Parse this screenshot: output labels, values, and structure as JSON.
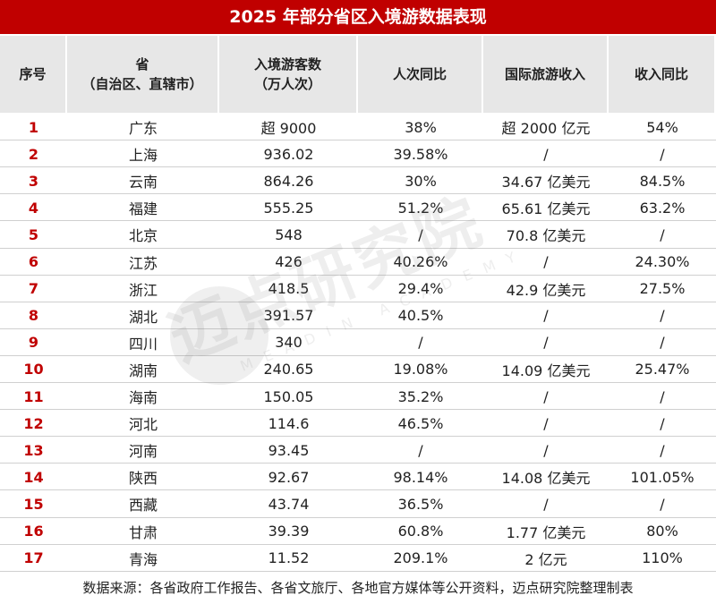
{
  "title": "2025 年部分省区入境游数据表现",
  "table": {
    "header": [
      [
        "序号"
      ],
      [
        "省",
        "（自治区、直辖市）"
      ],
      [
        "入境游客数",
        "（万人次）"
      ],
      [
        "人次同比"
      ],
      [
        "国际旅游收入"
      ],
      [
        "收入同比"
      ]
    ],
    "rows": [
      [
        "1",
        "广东",
        "超 9000",
        "38%",
        "超 2000 亿元",
        "54%"
      ],
      [
        "2",
        "上海",
        "936.02",
        "39.58%",
        "/",
        "/"
      ],
      [
        "3",
        "云南",
        "864.26",
        "30%",
        "34.67 亿美元",
        "84.5%"
      ],
      [
        "4",
        "福建",
        "555.25",
        "51.2%",
        "65.61 亿美元",
        "63.2%"
      ],
      [
        "5",
        "北京",
        "548",
        "/",
        "70.8 亿美元",
        "/"
      ],
      [
        "6",
        "江苏",
        "426",
        "40.26%",
        "/",
        "24.30%"
      ],
      [
        "7",
        "浙江",
        "418.5",
        "29.4%",
        "42.9 亿美元",
        "27.5%"
      ],
      [
        "8",
        "湖北",
        "391.57",
        "40.5%",
        "/",
        "/"
      ],
      [
        "9",
        "四川",
        "340",
        "/",
        "/",
        "/"
      ],
      [
        "10",
        "湖南",
        "240.65",
        "19.08%",
        "14.09 亿美元",
        "25.47%"
      ],
      [
        "11",
        "海南",
        "150.05",
        "35.2%",
        "/",
        "/"
      ],
      [
        "12",
        "河北",
        "114.6",
        "46.5%",
        "/",
        "/"
      ],
      [
        "13",
        "河南",
        "93.45",
        "/",
        "/",
        "/"
      ],
      [
        "14",
        "陕西",
        "92.67",
        "98.14%",
        "14.08 亿美元",
        "101.05%"
      ],
      [
        "15",
        "西藏",
        "43.74",
        "36.5%",
        "/",
        "/"
      ],
      [
        "16",
        "甘肃",
        "39.39",
        "60.8%",
        "1.77 亿美元",
        "80%"
      ],
      [
        "17",
        "青海",
        "11.52",
        "209.1%",
        "2 亿元",
        "110%"
      ]
    ]
  },
  "watermark": {
    "text": "迈点研究院",
    "subtext": "MEADIN ACADEMY"
  },
  "footer": "数据来源：各省政府工作报告、各省文旅厅、各地官方媒体等公开资料，迈点研究院整理制表"
}
